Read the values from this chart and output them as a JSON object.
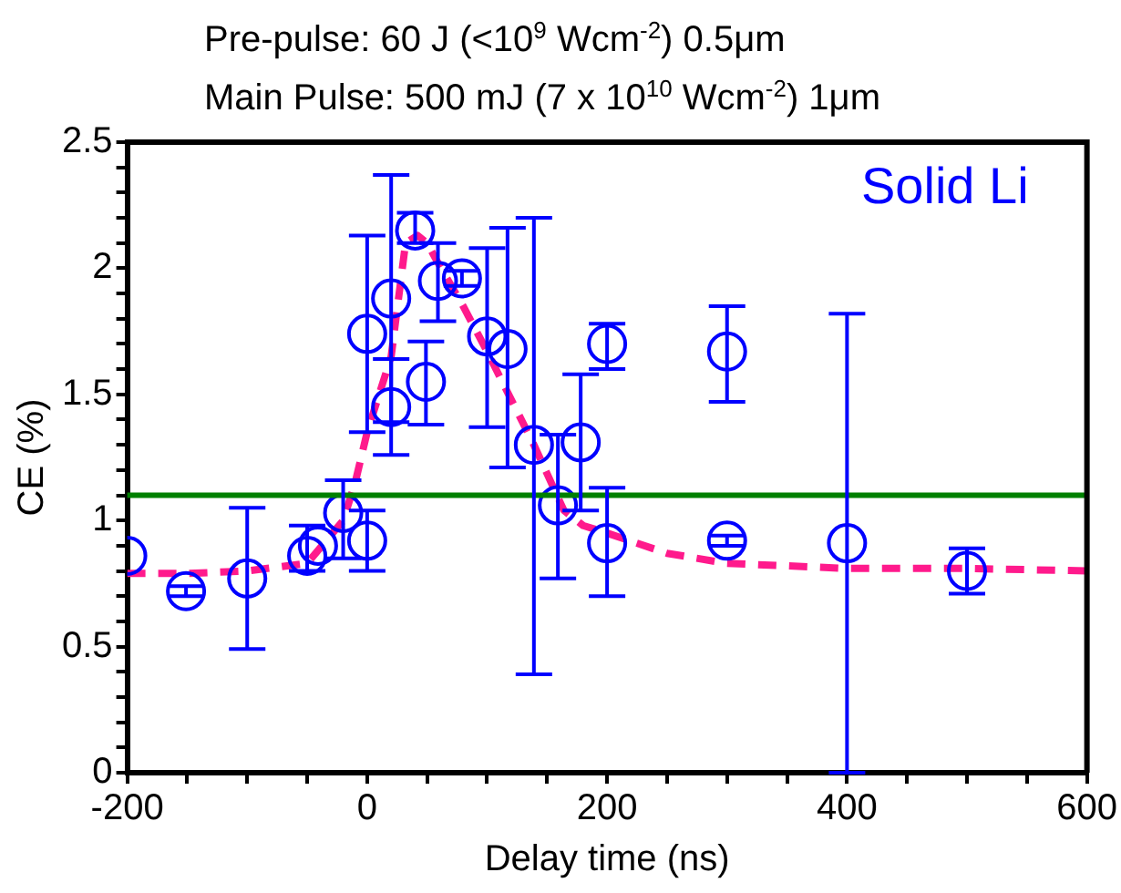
{
  "chart_data": {
    "type": "scatter",
    "title": "Pre-pulse: 60 J (<10$^{9}$ Wcm$^{-2}$) 0.5μm",
    "subtitle": "Main Pulse: 500 mJ (7 x 10$^{10}$ Wcm$^{-2}$) 1μm",
    "xlabel": "Delay time (ns)",
    "ylabel": "CE (%)",
    "annotations": [
      "Solid Li"
    ],
    "xlim": [
      -200,
      600
    ],
    "xticks": [
      -200,
      {
        "value": -150,
        "label": null
      },
      {
        "value": -100,
        "label": null
      },
      {
        "value": -50,
        "label": null
      },
      0,
      {
        "value": 50,
        "label": null
      },
      {
        "value": 100,
        "label": null
      },
      {
        "value": 150,
        "label": null
      },
      200,
      {
        "value": 250,
        "label": null
      },
      {
        "value": 300,
        "label": null
      },
      {
        "value": 350,
        "label": null
      },
      400,
      {
        "value": 450,
        "label": null
      },
      {
        "value": 500,
        "label": null
      },
      {
        "value": 550,
        "label": null
      },
      600
    ],
    "ylim": [
      0,
      2.5
    ],
    "yticks": [
      0,
      {
        "value": 0.1,
        "label": null
      },
      {
        "value": 0.2,
        "label": null
      },
      {
        "value": 0.3,
        "label": null
      },
      {
        "value": 0.4,
        "label": null
      },
      0.5,
      {
        "value": 0.6,
        "label": null
      },
      {
        "value": 0.7,
        "label": null
      },
      {
        "value": 0.8,
        "label": null
      },
      {
        "value": 0.9,
        "label": null
      },
      1,
      {
        "value": 1.1,
        "label": null
      },
      {
        "value": 1.2,
        "label": null
      },
      {
        "value": 1.3,
        "label": null
      },
      {
        "value": 1.4,
        "label": null
      },
      1.5,
      {
        "value": 1.6,
        "label": null
      },
      {
        "value": 1.7,
        "label": null
      },
      {
        "value": 1.8,
        "label": null
      },
      {
        "value": 1.9,
        "label": null
      },
      2,
      {
        "value": 2.1,
        "label": null
      },
      {
        "value": 2.2,
        "label": null
      },
      {
        "value": 2.3,
        "label": null
      },
      {
        "value": 2.4,
        "label": null
      },
      2.5
    ],
    "grid": false,
    "legend": false,
    "ref_lines": [
      {
        "axis": "y",
        "value": 1.1,
        "color": "#008000"
      }
    ],
    "series": [
      {
        "type": "scatter",
        "marker": "circle",
        "color": "#0000ff",
        "x": [
          -200,
          -151,
          -100,
          -50,
          -41,
          -20,
          0,
          0,
          20,
          20,
          40,
          49,
          59,
          79,
          100,
          117,
          139,
          159,
          178,
          200,
          200,
          300,
          300,
          400,
          500
        ],
        "values": [
          0.86,
          0.72,
          0.77,
          0.86,
          0.9,
          1.03,
          0.92,
          1.74,
          1.88,
          1.45,
          2.15,
          1.55,
          1.95,
          1.96,
          1.73,
          1.68,
          1.3,
          1.06,
          1.31,
          0.91,
          1.7,
          1.67,
          0.92,
          0.91,
          0.8
        ],
        "errors": [
          null,
          0.02,
          [
            0.49,
            1.05
          ],
          [
            0.8,
            0.98
          ],
          null,
          [
            0.85,
            1.16
          ],
          [
            0.8,
            1.04
          ],
          [
            1.35,
            2.13
          ],
          [
            1.39,
            2.37
          ],
          [
            1.26,
            1.64
          ],
          [
            2.1,
            2.22
          ],
          [
            1.38,
            1.71
          ],
          [
            1.79,
            2.1
          ],
          0.03,
          [
            1.37,
            2.08
          ],
          [
            1.21,
            2.16
          ],
          [
            0.39,
            2.2
          ],
          [
            0.77,
            1.34
          ],
          [
            1.04,
            1.58
          ],
          [
            0.7,
            1.13
          ],
          [
            1.6,
            1.78
          ],
          [
            1.47,
            1.85
          ],
          0.02,
          [
            0,
            1.82
          ],
          [
            0.71,
            0.89
          ]
        ]
      },
      {
        "type": "line",
        "line_style": "dashed",
        "marker": "none",
        "color": "#ff1a8c",
        "x": [
          -200,
          -150,
          -100,
          -50,
          -20,
          -10,
          0,
          20,
          32,
          42,
          50,
          58,
          80,
          100,
          120,
          138,
          164,
          180,
          200,
          250,
          300,
          400,
          500,
          600
        ],
        "values": [
          0.79,
          0.79,
          0.8,
          0.83,
          1.0,
          1.15,
          1.35,
          1.65,
          2.1,
          2.13,
          2.1,
          2.03,
          1.85,
          1.67,
          1.48,
          1.31,
          1.04,
          0.98,
          0.95,
          0.87,
          0.83,
          0.81,
          0.81,
          0.8
        ]
      }
    ]
  }
}
